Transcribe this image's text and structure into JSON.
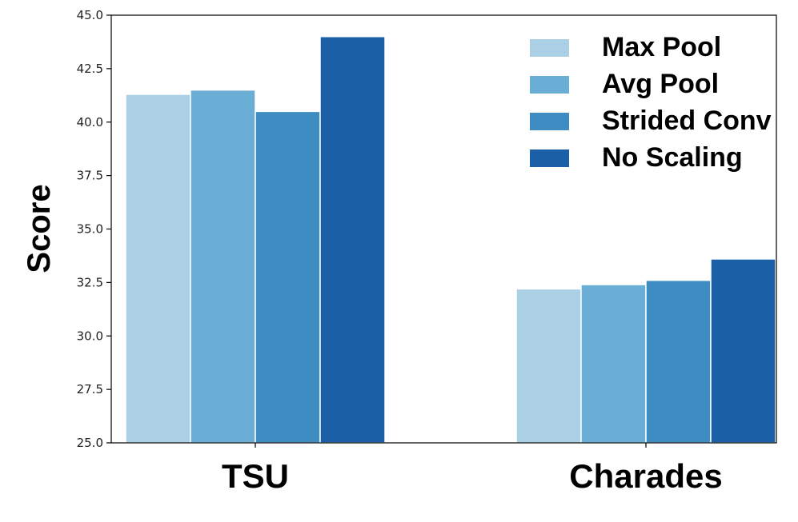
{
  "chart_data": {
    "type": "bar",
    "title": "",
    "xlabel": "",
    "ylabel": "Score",
    "ylim": [
      25.0,
      45.0
    ],
    "yticks": [
      "25.0",
      "27.5",
      "30.0",
      "32.5",
      "35.0",
      "37.5",
      "40.0",
      "42.5",
      "45.0"
    ],
    "categories": [
      "TSU",
      "Charades"
    ],
    "series": [
      {
        "name": "Max Pool",
        "color": "#abd0e6",
        "values": [
          41.3,
          32.2
        ]
      },
      {
        "name": "Avg Pool",
        "color": "#6aaed6",
        "values": [
          41.5,
          32.4
        ]
      },
      {
        "name": "Strided Conv",
        "color": "#3d8dc3",
        "values": [
          40.5,
          32.6
        ]
      },
      {
        "name": "No Scaling",
        "color": "#1b5fa7",
        "values": [
          44.0,
          33.6
        ]
      }
    ],
    "legend_position": "top-right",
    "grid": false
  }
}
